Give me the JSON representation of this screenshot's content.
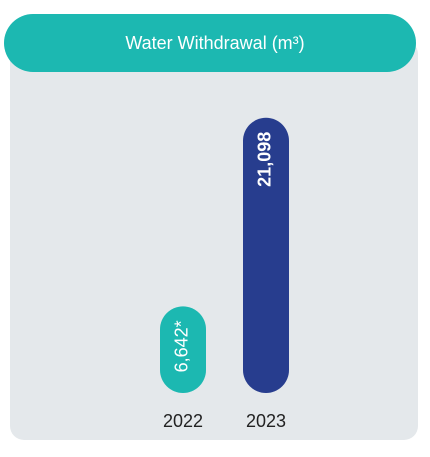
{
  "chart_data": {
    "type": "bar",
    "title": "Water Withdrawal (m³)",
    "categories": [
      "2022",
      "2023"
    ],
    "values": [
      6642,
      21098
    ],
    "value_labels": [
      "6,642*",
      "21,098"
    ],
    "colors": [
      "#1cb8b1",
      "#273d8e"
    ],
    "ylim": [
      0,
      22000
    ]
  }
}
